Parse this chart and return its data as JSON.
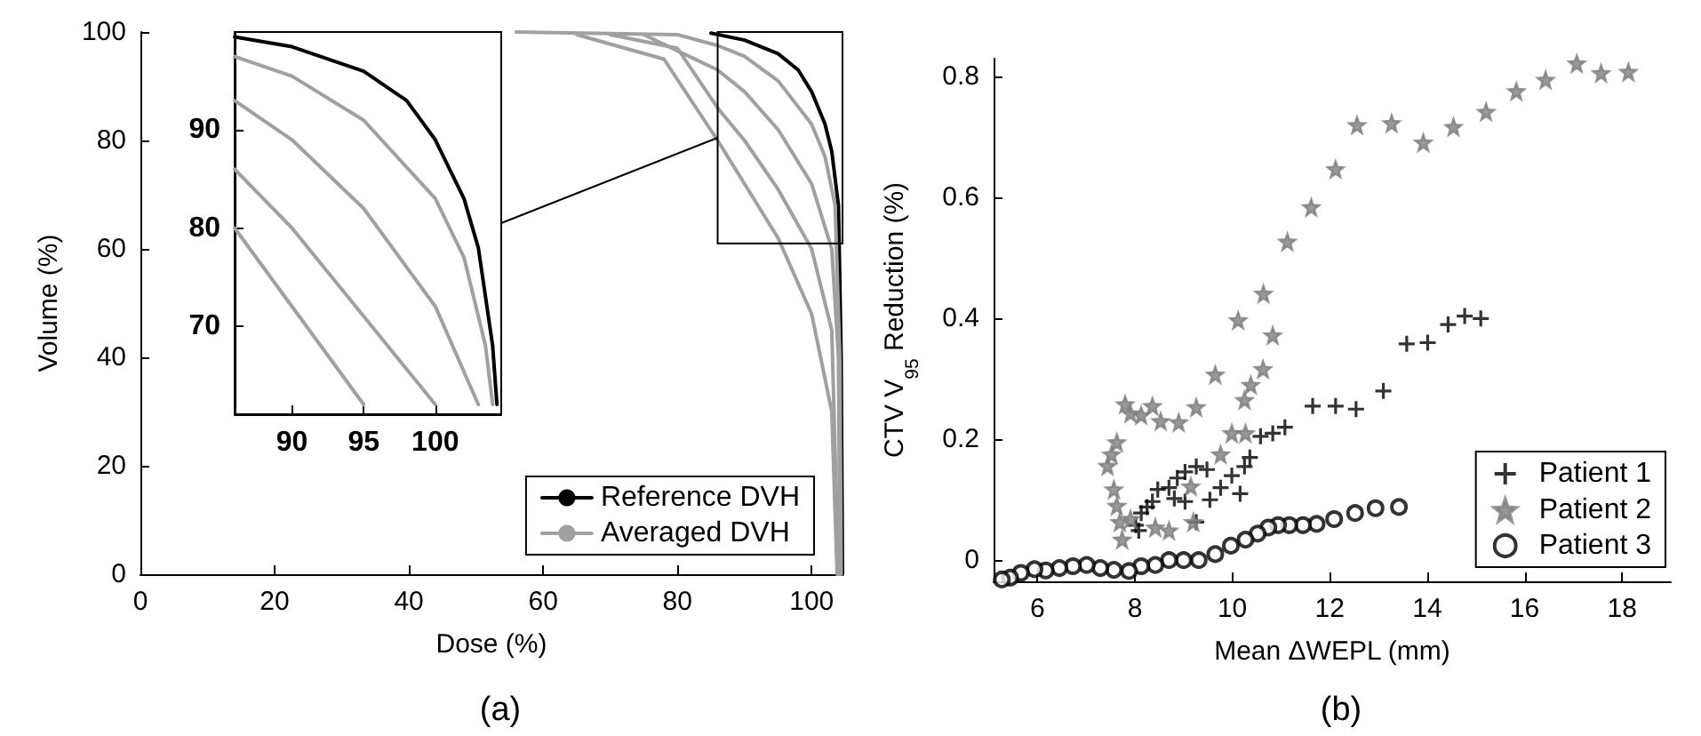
{
  "chart_data": [
    {
      "type": "line",
      "title": "(a)",
      "xlabel": "Dose (%)",
      "ylabel": "Volume (%)",
      "xlim": [
        0,
        104.6
      ],
      "ylim": [
        0,
        100
      ],
      "xticks": [
        0,
        20,
        40,
        60,
        80,
        100
      ],
      "yticks": [
        0,
        20,
        40,
        60,
        80,
        100
      ],
      "legend": "bottom right",
      "series": [
        {
          "name": "Reference DVH",
          "color": "#000000",
          "x": [
            85,
            90,
            95,
            98,
            100,
            102,
            103,
            104,
            104.4,
            104.6
          ],
          "values": [
            99.8,
            98.5,
            96,
            93,
            89,
            83,
            78,
            68,
            40,
            0
          ]
        },
        {
          "name": "Averaged DVH",
          "color": "#a0a0a0",
          "x": [
            56,
            80,
            86,
            90,
            95,
            100,
            102,
            103.5,
            104.2,
            104.4
          ],
          "values": [
            100,
            99.5,
            97.5,
            95.5,
            91,
            83,
            77,
            68,
            40,
            0
          ]
        },
        {
          "color": "#a0a0a0",
          "x": [
            75,
            86,
            90,
            95,
            100,
            103,
            104,
            104.2
          ],
          "values": [
            99.5,
            93,
            89,
            82,
            72,
            60,
            40,
            0
          ]
        },
        {
          "color": "#a0a0a0",
          "x": [
            70,
            80,
            86,
            90,
            95,
            100,
            103,
            104
          ],
          "values": [
            99.5,
            97,
            86,
            80,
            71,
            60,
            45,
            0
          ]
        },
        {
          "color": "#a0a0a0",
          "x": [
            65,
            78,
            86,
            90,
            95,
            100,
            103,
            103.8
          ],
          "values": [
            99.5,
            95,
            80,
            72,
            62,
            48,
            30,
            0
          ]
        }
      ]
    },
    {
      "type": "line",
      "xlim": [
        86,
        104.6
      ],
      "ylim": [
        61,
        100
      ],
      "xticks": [
        90,
        95,
        100
      ],
      "yticks": [
        70,
        80,
        90
      ],
      "series": [
        {
          "color": "#000000",
          "x": [
            86,
            90,
            95,
            98,
            100,
            102,
            103,
            104,
            104.3
          ],
          "values": [
            99.5,
            98.5,
            96,
            93,
            89,
            83,
            78,
            68,
            62
          ]
        },
        {
          "color": "#a0a0a0",
          "x": [
            86,
            90,
            95,
            100,
            102,
            103.5,
            104
          ],
          "values": [
            97.5,
            95.5,
            91,
            83,
            77,
            68,
            62
          ]
        },
        {
          "color": "#a0a0a0",
          "x": [
            86,
            90,
            95,
            100,
            103
          ],
          "values": [
            93,
            89,
            82,
            72,
            62
          ]
        },
        {
          "color": "#a0a0a0",
          "x": [
            86,
            90,
            95,
            100
          ],
          "values": [
            86,
            80,
            71,
            62
          ]
        },
        {
          "color": "#a0a0a0",
          "x": [
            86,
            90,
            95
          ],
          "values": [
            80,
            72,
            62
          ]
        }
      ]
    },
    {
      "type": "scatter",
      "title": "(b)",
      "xlabel": "Mean ΔWEPL (mm)",
      "ylabel": "CTV V$_{95}$ Reduction (%)",
      "xlim": [
        5.1,
        19
      ],
      "ylim": [
        -0.035,
        0.83
      ],
      "xticks": [
        6,
        8,
        10,
        12,
        14,
        16,
        18
      ],
      "yticks": [
        0,
        0.2,
        0.4,
        0.6,
        0.8
      ],
      "legend": "bottom right",
      "series": [
        {
          "name": "Patient 1",
          "color": "#000000",
          "marker": "cross",
          "x": [
            15.1,
            14.77,
            14.43,
            14.01,
            13.58,
            13.1,
            12.54,
            12.12,
            11.65,
            11.08,
            10.83,
            10.58,
            10.36,
            10.25,
            10.16,
            9.99,
            9.76,
            9.54,
            9.26,
            9.48,
            9.26,
            9.03,
            8.87,
            8.7,
            8.47,
            8.36,
            8.25,
            8.13,
            8.02,
            8.08,
            9.03,
            8.81
          ],
          "values": [
            0.4,
            0.404,
            0.39,
            0.36,
            0.358,
            0.28,
            0.25,
            0.255,
            0.255,
            0.22,
            0.21,
            0.205,
            0.17,
            0.155,
            0.11,
            0.14,
            0.12,
            0.1,
            0.063,
            0.15,
            0.155,
            0.146,
            0.136,
            0.12,
            0.117,
            0.097,
            0.088,
            0.078,
            0.058,
            0.049,
            0.097,
            0.102
          ]
        },
        {
          "name": "Patient 2",
          "color": "#808080",
          "marker": "star",
          "x": [
            17.07,
            17.57,
            18.13,
            16.43,
            15.83,
            15.21,
            14.54,
            13.92,
            13.27,
            12.56,
            12.12,
            11.62,
            11.13,
            10.64,
            10.83,
            10.63,
            10.38,
            10.25,
            10.12,
            9.65,
            9.26,
            8.9,
            8.53,
            8.36,
            8.13,
            7.91,
            7.8,
            7.63,
            7.52,
            7.44,
            7.57,
            7.63,
            7.69,
            7.74,
            7.91,
            8.42,
            8.7,
            9.2,
            9.15,
            9.76,
            9.99,
            10.27
          ],
          "values": [
            0.822,
            0.806,
            0.808,
            0.795,
            0.776,
            0.742,
            0.717,
            0.691,
            0.723,
            0.72,
            0.647,
            0.584,
            0.527,
            0.441,
            0.372,
            0.316,
            0.29,
            0.265,
            0.397,
            0.307,
            0.253,
            0.228,
            0.23,
            0.255,
            0.24,
            0.243,
            0.258,
            0.195,
            0.175,
            0.156,
            0.117,
            0.09,
            0.063,
            0.034,
            0.068,
            0.054,
            0.049,
            0.063,
            0.122,
            0.175,
            0.21,
            0.21
          ]
        },
        {
          "name": "Patient 3",
          "color": "#000000",
          "marker": "circle",
          "x": [
            13.42,
            12.94,
            12.52,
            12.09,
            11.73,
            11.45,
            11.17,
            10.94,
            10.74,
            10.52,
            10.27,
            9.97,
            9.65,
            9.31,
            9.0,
            8.7,
            8.42,
            8.13,
            7.88,
            7.57,
            7.29,
            7.01,
            6.73,
            6.45,
            6.17,
            5.94,
            5.66,
            5.44,
            5.27
          ],
          "values": [
            0.088,
            0.086,
            0.078,
            0.068,
            0.06,
            0.058,
            0.058,
            0.058,
            0.054,
            0.044,
            0.034,
            0.024,
            0.01,
            0,
            0,
            0,
            -0.008,
            -0.01,
            -0.018,
            -0.016,
            -0.013,
            -0.008,
            -0.01,
            -0.013,
            -0.017,
            -0.015,
            -0.021,
            -0.029,
            -0.032
          ]
        }
      ]
    }
  ]
}
